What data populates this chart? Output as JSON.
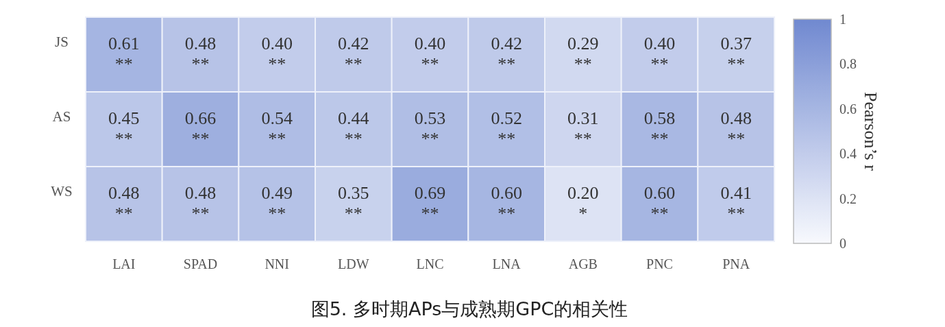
{
  "chart_data": {
    "type": "heatmap",
    "title": "图5. 多时期APs与成熟期GPC的相关性",
    "categories": [
      "LAI",
      "SPAD",
      "NNI",
      "LDW",
      "LNC",
      "LNA",
      "AGB",
      "PNC",
      "PNA"
    ],
    "y_categories": [
      "JS",
      "AS",
      "WS"
    ],
    "cells": [
      [
        0.61,
        0.48,
        0.4,
        0.42,
        0.4,
        0.42,
        0.29,
        0.4,
        0.37
      ],
      [
        0.45,
        0.66,
        0.54,
        0.44,
        0.53,
        0.52,
        0.31,
        0.58,
        0.48
      ],
      [
        0.48,
        0.48,
        0.49,
        0.35,
        0.69,
        0.6,
        0.2,
        0.6,
        0.41
      ]
    ],
    "cell_labels": [
      [
        "0.61\n**",
        "0.48\n**",
        "0.40\n**",
        "0.42\n**",
        "0.40\n**",
        "0.42\n**",
        "0.29\n**",
        "0.40\n**",
        "0.37\n**"
      ],
      [
        "0.45\n**",
        "0.66\n**",
        "0.54\n**",
        "0.44\n**",
        "0.53\n**",
        "0.52\n**",
        "0.31\n**",
        "0.58\n**",
        "0.48\n**"
      ],
      [
        "0.48\n**",
        "0.48\n**",
        "0.49\n**",
        "0.35\n**",
        "0.69\n**",
        "0.60\n**",
        "0.20\n*",
        "0.60\n**",
        "0.41\n**"
      ]
    ],
    "clim": [
      0,
      1
    ],
    "cticks": [
      0,
      0.2,
      0.4,
      0.6,
      0.8,
      1
    ],
    "clabel": "Pearson’s r"
  }
}
